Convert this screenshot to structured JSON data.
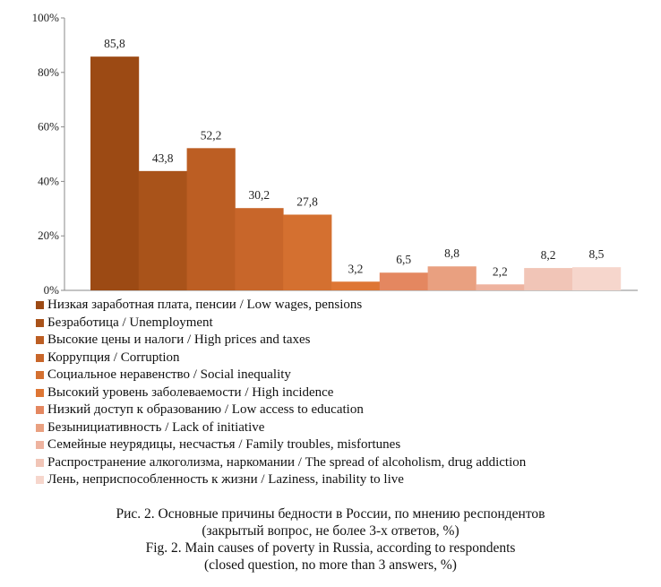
{
  "chart_data": {
    "type": "bar",
    "y_ticks": [
      "0%",
      "20%",
      "40%",
      "60%",
      "80%",
      "100%"
    ],
    "ylim": [
      0,
      100
    ],
    "grid": false,
    "legend_position": "bottom",
    "series": [
      {
        "name": "Низкая заработная плата, пенсии / Low wages, pensions",
        "value": 85.8,
        "label": "85,8",
        "color": "#9C4A14"
      },
      {
        "name": "Безработица / Unemployment",
        "value": 43.8,
        "label": "43,8",
        "color": "#A9531A"
      },
      {
        "name": "Высокие цены и налоги / High prices and taxes",
        "value": 52.2,
        "label": "52,2",
        "color": "#BC5E23"
      },
      {
        "name": "Коррупция / Corruption",
        "value": 30.2,
        "label": "30,2",
        "color": "#C8662A"
      },
      {
        "name": "Социальное неравенство / Social inequality",
        "value": 27.8,
        "label": "27,8",
        "color": "#D47030"
      },
      {
        "name": "Высокий уровень заболеваемости / High incidence",
        "value": 3.2,
        "label": "3,2",
        "color": "#DE7634"
      },
      {
        "name": "Низкий доступ к образованию / Low access to education",
        "value": 6.5,
        "label": "6,5",
        "color": "#E48760"
      },
      {
        "name": "Безынициативность / Lack of initiative",
        "value": 8.8,
        "label": "8,8",
        "color": "#E9A080"
      },
      {
        "name": "Семейные неурядицы, несчастья / Family troubles, misfortunes",
        "value": 2.2,
        "label": "2,2",
        "color": "#EEB39F"
      },
      {
        "name": "Распространение алкоголизма, наркомании / The spread of alcoholism, drug addiction",
        "value": 8.2,
        "label": "8,2",
        "color": "#F1C5B7"
      },
      {
        "name": "Лень, неприспособленность к жизни / Laziness, inability to live",
        "value": 8.5,
        "label": "8,5",
        "color": "#F6D6CC"
      }
    ]
  },
  "caption": {
    "line1": "Рис. 2. Основные причины бедности в России, по мнению респондентов",
    "line2": "(закрытый вопрос, не более 3-х ответов, %)",
    "line3": "Fig. 2. Main causes of poverty in Russia, according to respondents",
    "line4": "(closed question, no more than 3 answers, %)"
  }
}
